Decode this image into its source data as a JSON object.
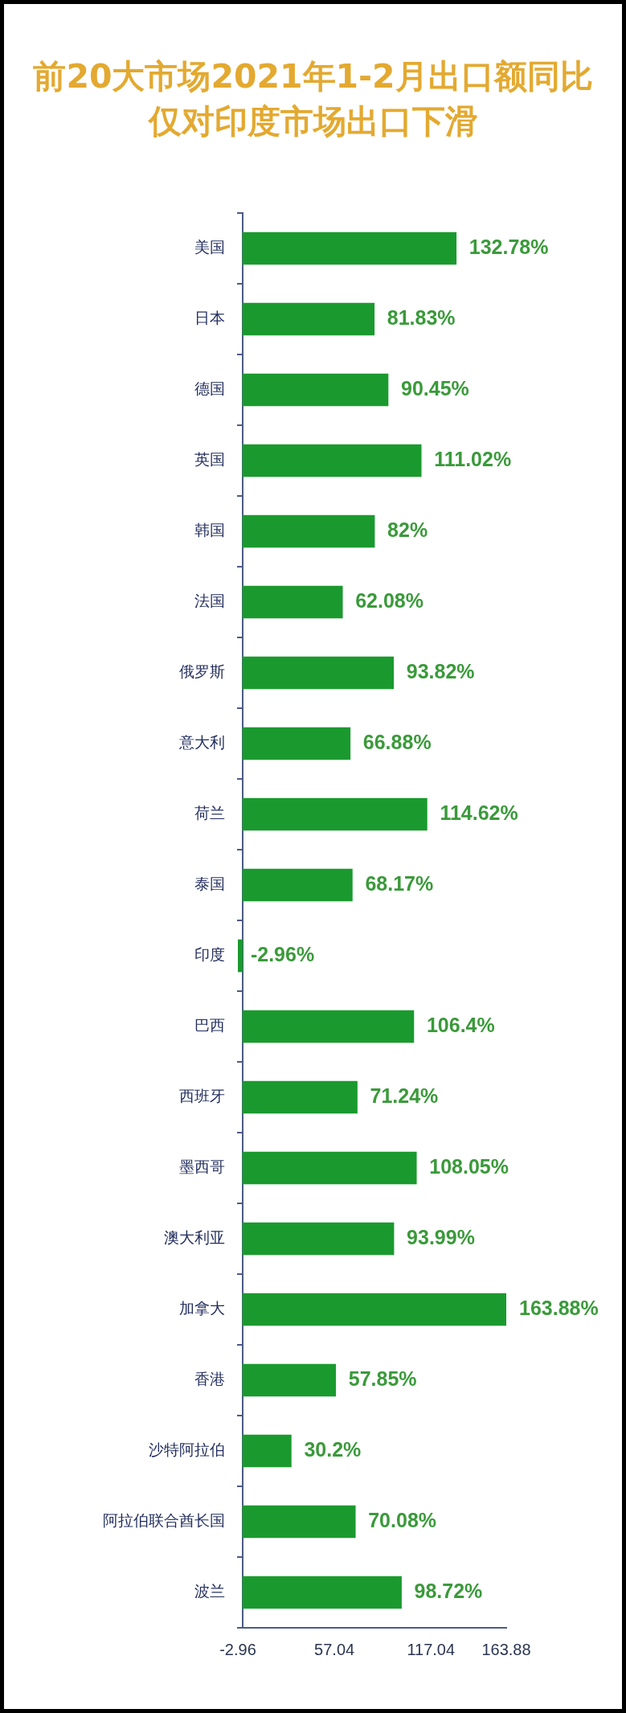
{
  "chart_data": {
    "type": "bar",
    "orientation": "horizontal",
    "title": "前20大市场2021年1-2月出口额同比仅对印度市场出口下滑",
    "categories": [
      "美国",
      "日本",
      "德国",
      "英国",
      "韩国",
      "法国",
      "俄罗斯",
      "意大利",
      "荷兰",
      "泰国",
      "印度",
      "巴西",
      "西班牙",
      "墨西哥",
      "澳大利亚",
      "加拿大",
      "香港",
      "沙特阿拉伯",
      "阿拉伯联合酋长国",
      "波兰"
    ],
    "values": [
      132.78,
      81.83,
      90.45,
      111.02,
      82,
      62.08,
      93.82,
      66.88,
      114.62,
      68.17,
      -2.96,
      106.4,
      71.24,
      108.05,
      93.99,
      163.88,
      57.85,
      30.2,
      70.08,
      98.72
    ],
    "value_labels": [
      "132.78%",
      "81.83%",
      "90.45%",
      "111.02%",
      "82%",
      "62.08%",
      "93.82%",
      "66.88%",
      "114.62%",
      "68.17%",
      "-2.96%",
      "106.4%",
      "71.24%",
      "108.05%",
      "93.99%",
      "163.88%",
      "57.85%",
      "30.2%",
      "70.08%",
      "98.72%"
    ],
    "color": "#1a9a2e",
    "xlim": [
      -2.96,
      163.88
    ],
    "xticks": [
      -2.96,
      57.04,
      117.04,
      163.88
    ]
  }
}
